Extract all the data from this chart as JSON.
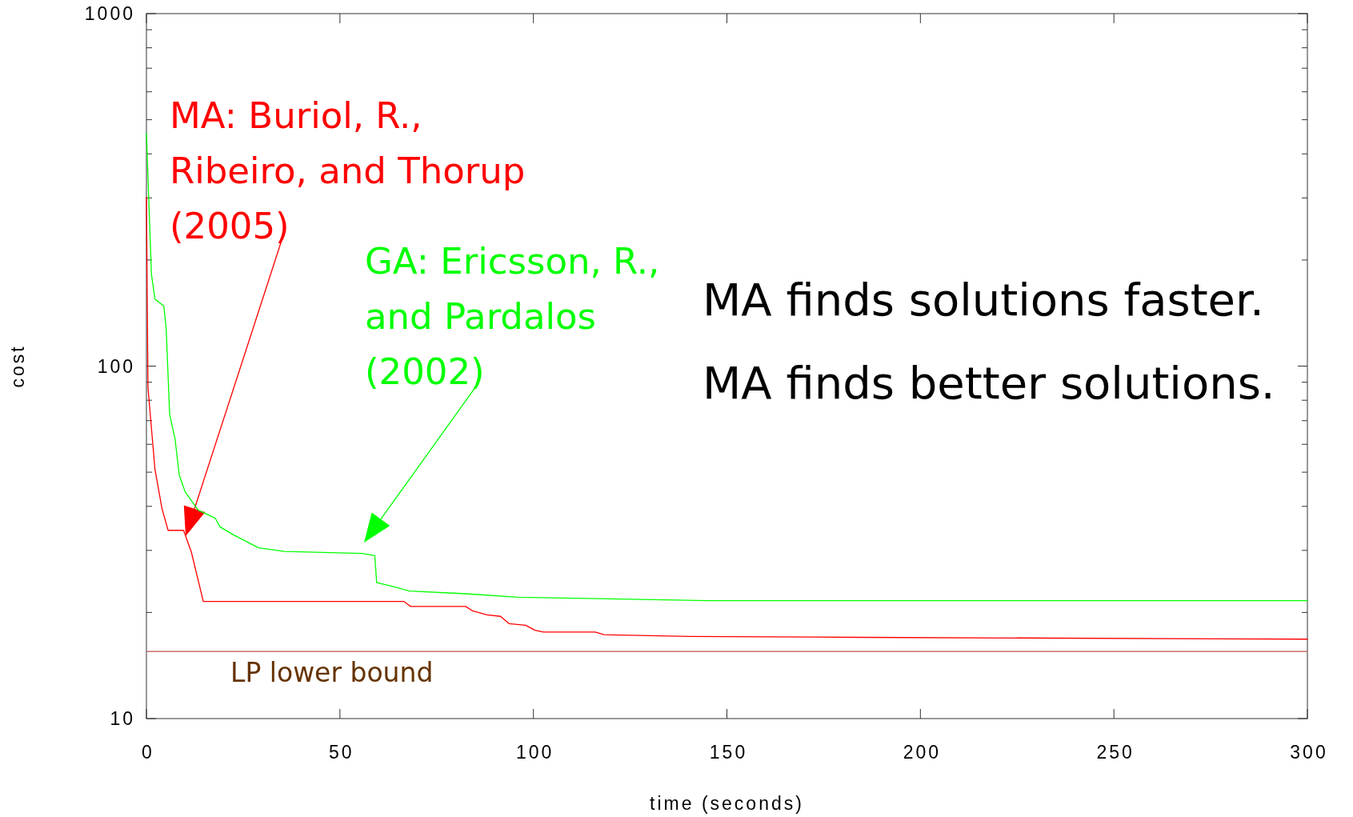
{
  "chart_data": {
    "type": "line",
    "xlabel": "time (seconds)",
    "ylabel": "cost",
    "log": "y",
    "xlim": [
      0,
      300
    ],
    "xticks": [
      0,
      50,
      100,
      150,
      200,
      250,
      300
    ],
    "ylim": [
      10,
      1000
    ],
    "yticks": [
      10,
      {
        "value": 20,
        "label": null
      },
      {
        "value": 30,
        "label": null
      },
      {
        "value": 40,
        "label": null
      },
      {
        "value": 50,
        "label": null
      },
      {
        "value": 60,
        "label": null
      },
      {
        "value": 70,
        "label": null
      },
      {
        "value": 80,
        "label": null
      },
      {
        "value": 90,
        "label": null
      },
      100,
      {
        "value": 200,
        "label": null
      },
      {
        "value": 300,
        "label": null
      },
      {
        "value": 400,
        "label": null
      },
      {
        "value": 500,
        "label": null
      },
      {
        "value": 600,
        "label": null
      },
      {
        "value": 700,
        "label": null
      },
      {
        "value": 800,
        "label": null
      },
      {
        "value": 900,
        "label": null
      },
      1000
    ],
    "grid": false,
    "marker": "none",
    "line_style": "solid",
    "series": [
      {
        "name": "MA: Buriol, R., Ribeiro, and Thorup (2005)",
        "color": "#ff0000",
        "x": [
          0,
          0.4,
          2.2,
          4,
          5.6,
          9.6,
          11.6,
          14.7,
          66.5,
          68.3,
          82.5,
          84.3,
          88,
          91.5,
          93.7,
          98,
          100.4,
          102.6,
          116,
          118.2,
          140.5,
          185,
          300
        ],
        "values": [
          301,
          87,
          51,
          39.5,
          34.2,
          34.2,
          29.7,
          21.5,
          21.5,
          20.8,
          20.8,
          20.2,
          19.7,
          19.5,
          18.6,
          18.4,
          17.8,
          17.6,
          17.6,
          17.3,
          17.1,
          17,
          16.8
        ]
      },
      {
        "name": "GA: Ericsson, R., and Pardalos (2002)",
        "color": "#00ff00",
        "x": [
          0,
          1.3,
          2.2,
          4.5,
          5.1,
          6,
          7.4,
          8.5,
          10,
          13.4,
          17.8,
          19,
          22.3,
          29,
          35.7,
          55.8,
          59,
          59.5,
          63.7,
          68,
          82.5,
          96,
          145,
          300
        ],
        "values": [
          457,
          182,
          155,
          148,
          128,
          73,
          62,
          49,
          44,
          39,
          37,
          35,
          33.3,
          30.5,
          29.8,
          29.4,
          29,
          24.3,
          23.7,
          23,
          22.6,
          22.1,
          21.6,
          21.6
        ]
      }
    ],
    "ref_lines": [
      {
        "axis": "y",
        "value": 15.5,
        "label": "LP lower bound",
        "color": "#c05050"
      }
    ],
    "annotations": [
      "MA finds solutions faster.",
      "MA finds better solutions."
    ]
  }
}
